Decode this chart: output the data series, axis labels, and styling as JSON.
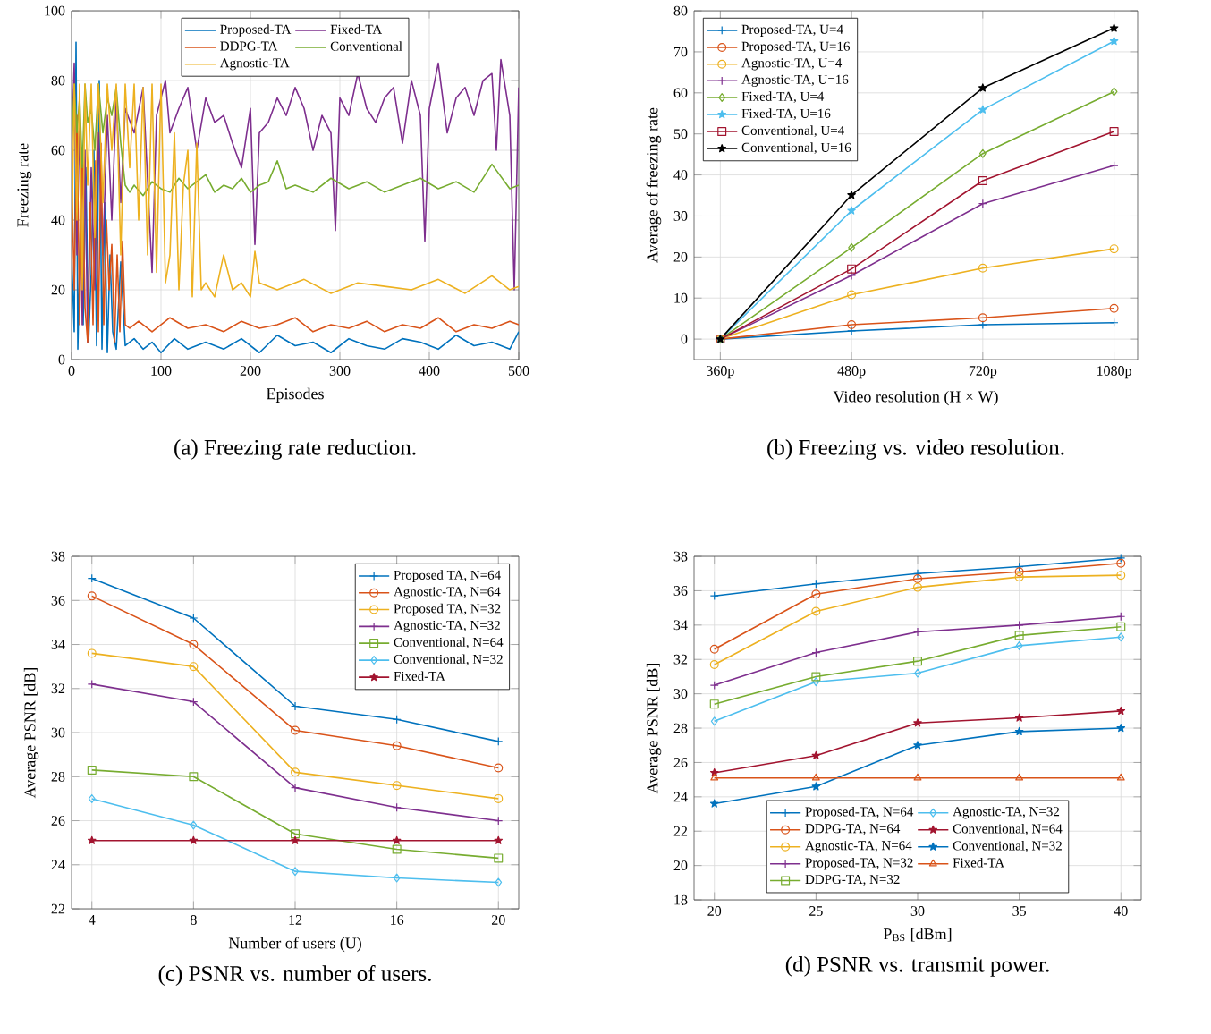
{
  "chart_data": [
    {
      "type": "line",
      "title": "(a) Freezing rate reduction.",
      "xlabel": "Episodes",
      "ylabel": "Freezing rate",
      "xlim": [
        0,
        500
      ],
      "xticks": [
        0,
        100,
        200,
        300,
        400,
        500
      ],
      "ylim": [
        0,
        100
      ],
      "yticks": [
        0,
        20,
        40,
        60,
        80,
        100
      ],
      "grid": true,
      "legend": "top",
      "series": [
        {
          "name": "Proposed-TA",
          "color": "#0072bd",
          "x": [
            0,
            3,
            5,
            7,
            10,
            13,
            16,
            19,
            22,
            25,
            28,
            31,
            34,
            37,
            40,
            43,
            46,
            50,
            55,
            60,
            70,
            80,
            90,
            100,
            115,
            130,
            150,
            170,
            190,
            210,
            230,
            250,
            270,
            290,
            310,
            330,
            350,
            370,
            390,
            410,
            430,
            450,
            470,
            490,
            500
          ],
          "values": [
            30,
            8,
            91,
            3,
            40,
            10,
            55,
            5,
            25,
            60,
            4,
            80,
            3,
            45,
            2,
            30,
            8,
            3,
            28,
            4,
            6,
            3,
            5,
            2,
            6,
            3,
            5,
            3,
            6,
            2,
            7,
            4,
            5,
            2,
            6,
            4,
            3,
            6,
            5,
            3,
            7,
            4,
            5,
            3,
            8
          ]
        },
        {
          "name": "Fixed-TA",
          "color": "#7e2f8e",
          "x": [
            0,
            3,
            6,
            9,
            12,
            15,
            18,
            22,
            26,
            30,
            35,
            40,
            45,
            50,
            55,
            60,
            70,
            80,
            90,
            95,
            100,
            105,
            110,
            120,
            130,
            140,
            150,
            160,
            170,
            180,
            190,
            200,
            205,
            210,
            220,
            230,
            240,
            250,
            260,
            270,
            280,
            290,
            295,
            300,
            310,
            320,
            330,
            340,
            350,
            360,
            370,
            380,
            390,
            395,
            400,
            410,
            420,
            430,
            440,
            450,
            460,
            470,
            475,
            480,
            490,
            495,
            500
          ],
          "values": [
            60,
            85,
            30,
            70,
            10,
            60,
            5,
            55,
            20,
            65,
            30,
            70,
            40,
            75,
            45,
            72,
            65,
            78,
            25,
            70,
            75,
            80,
            65,
            72,
            78,
            60,
            75,
            68,
            70,
            62,
            55,
            72,
            33,
            65,
            68,
            75,
            70,
            78,
            72,
            60,
            70,
            65,
            37,
            75,
            70,
            82,
            72,
            68,
            75,
            78,
            62,
            80,
            70,
            34,
            72,
            85,
            65,
            75,
            78,
            70,
            80,
            82,
            60,
            86,
            70,
            20,
            78
          ]
        },
        {
          "name": "DDPG-TA",
          "color": "#d95319",
          "x": [
            0,
            3,
            6,
            9,
            12,
            15,
            18,
            21,
            24,
            27,
            30,
            33,
            36,
            39,
            42,
            45,
            48,
            51,
            54,
            57,
            60,
            65,
            75,
            90,
            110,
            130,
            150,
            170,
            190,
            210,
            230,
            250,
            270,
            290,
            310,
            330,
            350,
            370,
            390,
            410,
            430,
            450,
            470,
            490,
            500
          ],
          "values": [
            55,
            20,
            70,
            10,
            60,
            15,
            5,
            45,
            10,
            57,
            8,
            62,
            10,
            40,
            20,
            33,
            5,
            30,
            8,
            34,
            10,
            9,
            11,
            8,
            12,
            9,
            10,
            8,
            11,
            9,
            10,
            12,
            8,
            10,
            9,
            11,
            8,
            10,
            9,
            12,
            8,
            10,
            9,
            11,
            10
          ]
        },
        {
          "name": "Conventional",
          "color": "#77ac30",
          "x": [
            0,
            3,
            6,
            9,
            12,
            15,
            18,
            22,
            26,
            30,
            35,
            40,
            45,
            50,
            55,
            60,
            65,
            70,
            80,
            90,
            100,
            110,
            120,
            130,
            140,
            150,
            160,
            170,
            180,
            190,
            200,
            210,
            220,
            230,
            240,
            250,
            270,
            290,
            310,
            330,
            350,
            370,
            390,
            410,
            430,
            450,
            470,
            490,
            500
          ],
          "values": [
            60,
            79,
            65,
            75,
            55,
            79,
            68,
            72,
            60,
            79,
            65,
            75,
            70,
            78,
            62,
            50,
            48,
            50,
            47,
            51,
            49,
            48,
            52,
            49,
            51,
            53,
            48,
            50,
            49,
            52,
            48,
            50,
            51,
            57,
            49,
            50,
            48,
            52,
            49,
            51,
            48,
            50,
            52,
            49,
            51,
            48,
            56,
            49,
            50
          ]
        },
        {
          "name": "Agnostic-TA",
          "color": "#edb120",
          "x": [
            0,
            3,
            6,
            9,
            12,
            15,
            18,
            22,
            26,
            30,
            35,
            40,
            45,
            50,
            55,
            60,
            65,
            70,
            75,
            80,
            85,
            90,
            95,
            100,
            105,
            110,
            115,
            120,
            125,
            130,
            135,
            140,
            145,
            150,
            160,
            170,
            180,
            190,
            200,
            205,
            210,
            230,
            260,
            290,
            320,
            350,
            380,
            410,
            440,
            470,
            490,
            500
          ],
          "values": [
            30,
            79,
            40,
            79,
            20,
            79,
            50,
            79,
            35,
            79,
            45,
            79,
            60,
            79,
            30,
            79,
            55,
            79,
            40,
            78,
            30,
            79,
            25,
            79,
            22,
            30,
            65,
            20,
            50,
            60,
            18,
            62,
            20,
            22,
            18,
            30,
            20,
            22,
            18,
            31,
            22,
            20,
            23,
            19,
            22,
            21,
            20,
            23,
            19,
            24,
            20,
            21
          ]
        }
      ]
    },
    {
      "type": "line",
      "title": "(b) Freezing vs. video resolution.",
      "xlabel": "Video resolution (H × W)",
      "ylabel": "Average of freezing rate",
      "categories": [
        "360p",
        "480p",
        "720p",
        "1080p"
      ],
      "ylim": [
        -5,
        80
      ],
      "yticks": [
        0,
        10,
        20,
        30,
        40,
        50,
        60,
        70,
        80
      ],
      "grid": true,
      "legend": "top left",
      "series": [
        {
          "name": "Proposed-TA, U=4",
          "color": "#0072bd",
          "marker": "cross",
          "values": [
            0,
            2,
            3.5,
            4
          ]
        },
        {
          "name": "Proposed-TA, U=16",
          "color": "#d95319",
          "marker": "circle",
          "values": [
            0,
            3.5,
            5.2,
            7.5
          ]
        },
        {
          "name": "Agnostic-TA, U=4",
          "color": "#edb120",
          "marker": "circle",
          "values": [
            0,
            10.8,
            17.3,
            22
          ]
        },
        {
          "name": "Agnostic-TA, U=16",
          "color": "#7e2f8e",
          "marker": "cross",
          "values": [
            0,
            15.5,
            33,
            42.3
          ]
        },
        {
          "name": "Fixed-TA, U=4",
          "color": "#77ac30",
          "marker": "diamond",
          "values": [
            0,
            22.3,
            45.2,
            60.3
          ]
        },
        {
          "name": "Fixed-TA, U=16",
          "color": "#4dbeee",
          "marker": "star",
          "values": [
            0,
            31.3,
            55.9,
            72.6
          ]
        },
        {
          "name": "Conventional, U=4",
          "color": "#a2142f",
          "marker": "square",
          "values": [
            0,
            17.1,
            38.6,
            50.6
          ]
        },
        {
          "name": "Conventional, U=16",
          "color": "#000000",
          "marker": "star",
          "values": [
            0,
            35.1,
            61.2,
            75.8
          ]
        }
      ]
    },
    {
      "type": "line",
      "title": "(c) PSNR vs. number of users.",
      "xlabel": "Number of users (U)",
      "ylabel": "Average PSNR [dB]",
      "x": [
        4,
        8,
        12,
        16,
        20
      ],
      "xlim": [
        3.2,
        20.8
      ],
      "xticks": [
        4,
        8,
        12,
        16,
        20
      ],
      "ylim": [
        22,
        38
      ],
      "yticks": [
        22,
        24,
        26,
        28,
        30,
        32,
        34,
        36,
        38
      ],
      "grid": true,
      "legend": "top right",
      "series": [
        {
          "name": "Proposed TA, N=64",
          "color": "#0072bd",
          "marker": "cross",
          "values": [
            37.0,
            35.2,
            31.2,
            30.6,
            29.6
          ]
        },
        {
          "name": "Agnostic-TA, N=64",
          "color": "#d95319",
          "marker": "circle",
          "values": [
            36.2,
            34.0,
            30.1,
            29.4,
            28.4
          ]
        },
        {
          "name": "Proposed TA, N=32",
          "color": "#edb120",
          "marker": "circle",
          "values": [
            33.6,
            33.0,
            28.2,
            27.6,
            27.0
          ]
        },
        {
          "name": "Agnostic-TA, N=32",
          "color": "#7e2f8e",
          "marker": "cross",
          "values": [
            32.2,
            31.4,
            27.5,
            26.6,
            26.0
          ]
        },
        {
          "name": "Conventional, N=64",
          "color": "#77ac30",
          "marker": "square",
          "values": [
            28.3,
            28.0,
            25.4,
            24.7,
            24.3
          ]
        },
        {
          "name": "Conventional, N=32",
          "color": "#4dbeee",
          "marker": "diamond",
          "values": [
            27.0,
            25.8,
            23.7,
            23.4,
            23.2
          ]
        },
        {
          "name": "Fixed-TA",
          "color": "#a2142f",
          "marker": "star",
          "values": [
            25.1,
            25.1,
            25.1,
            25.1,
            25.1
          ]
        }
      ]
    },
    {
      "type": "line",
      "title": "(d) PSNR vs. transmit power.",
      "xlabel": "P$_{BS}$ [dBm]",
      "ylabel": "Average PSNR [dB]",
      "x": [
        20,
        25,
        30,
        35,
        40
      ],
      "xlim": [
        19,
        41
      ],
      "xticks": [
        20,
        25,
        30,
        35,
        40
      ],
      "ylim": [
        18,
        38
      ],
      "yticks": [
        18,
        20,
        22,
        24,
        26,
        28,
        30,
        32,
        34,
        36,
        38
      ],
      "grid": true,
      "legend": "bottom",
      "series": [
        {
          "name": "Proposed-TA, N=64",
          "color": "#0072bd",
          "marker": "cross",
          "values": [
            35.7,
            36.4,
            37.0,
            37.4,
            37.9
          ]
        },
        {
          "name": "Agnostic-TA, N=32",
          "color": "#4dbeee",
          "marker": "diamond",
          "values": [
            28.4,
            30.7,
            31.2,
            32.8,
            33.3
          ]
        },
        {
          "name": "DDPG-TA, N=64",
          "color": "#d95319",
          "marker": "circle",
          "values": [
            32.6,
            35.8,
            36.7,
            37.1,
            37.6
          ]
        },
        {
          "name": "Conventional, N=64",
          "color": "#a2142f",
          "marker": "star",
          "values": [
            25.4,
            26.4,
            28.3,
            28.6,
            29.0
          ]
        },
        {
          "name": "Agnostic-TA, N=64",
          "color": "#edb120",
          "marker": "circle",
          "values": [
            31.7,
            34.8,
            36.2,
            36.8,
            36.9
          ]
        },
        {
          "name": "Conventional, N=32",
          "color": "#0072bd",
          "marker": "star",
          "values": [
            23.6,
            24.6,
            27.0,
            27.8,
            28.0
          ]
        },
        {
          "name": "Proposed-TA, N=32",
          "color": "#7e2f8e",
          "marker": "cross",
          "values": [
            30.5,
            32.4,
            33.6,
            34.0,
            34.5
          ]
        },
        {
          "name": "Fixed-TA",
          "color": "#d95319",
          "marker": "triangle",
          "values": [
            25.1,
            25.1,
            25.1,
            25.1,
            25.1
          ]
        },
        {
          "name": "DDPG-TA, N=32",
          "color": "#77ac30",
          "marker": "square",
          "values": [
            29.4,
            31.0,
            31.9,
            33.4,
            33.9
          ]
        }
      ]
    }
  ]
}
